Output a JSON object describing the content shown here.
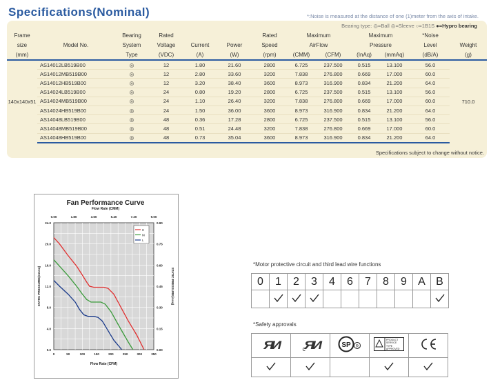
{
  "title": "Specifications(Nominal)",
  "noise_note": "*:Noise is measured at the distance of one (1)meter from the axis of intake.",
  "bearing_legend": {
    "label": "Bearing type:",
    "items": [
      "◎=Ball",
      "◎=Sleeve",
      "○=1B1S",
      "●=Hypro bearing"
    ]
  },
  "table": {
    "headers": [
      [
        "Frame",
        "size",
        "(mm)"
      ],
      [
        "Model No."
      ],
      [
        "Bearing",
        "System",
        "Type"
      ],
      [
        "Rated",
        "Voltage",
        "(VDC)"
      ],
      [
        "Current",
        "(A)"
      ],
      [
        "Power",
        "(W)"
      ],
      [
        "Rated",
        "Speed",
        "(rpm)"
      ],
      [
        "Maximum",
        "AirFlow",
        "(CMM)",
        "(CFM)"
      ],
      [
        "Maximum",
        "Pressure",
        "(InAq)",
        "(mmAq)"
      ],
      [
        "*Noise",
        "Level",
        "(dB/A)"
      ],
      [
        "Weight",
        "(g)"
      ]
    ],
    "frame_size": "140x140x51",
    "weight": "710.0",
    "rows": [
      [
        "AS14012LB519B00",
        "◎",
        "12",
        "1.80",
        "21.60",
        "2800",
        "6.725",
        "237.500",
        "0.515",
        "13.100",
        "56.0"
      ],
      [
        "AS14012MB519B00",
        "◎",
        "12",
        "2.80",
        "33.60",
        "3200",
        "7.838",
        "276.800",
        "0.669",
        "17.000",
        "60.0"
      ],
      [
        "AS14012HB519B00",
        "◎",
        "12",
        "3.20",
        "38.40",
        "3600",
        "8.973",
        "316.900",
        "0.834",
        "21.200",
        "64.0"
      ],
      [
        "AS14024LB519B00",
        "◎",
        "24",
        "0.80",
        "19.20",
        "2800",
        "6.725",
        "237.500",
        "0.515",
        "13.100",
        "56.0"
      ],
      [
        "AS14024MB519B00",
        "◎",
        "24",
        "1.10",
        "26.40",
        "3200",
        "7.838",
        "276.800",
        "0.669",
        "17.000",
        "60.0"
      ],
      [
        "AS14024HB519B00",
        "◎",
        "24",
        "1.50",
        "36.00",
        "3600",
        "8.973",
        "316.900",
        "0.834",
        "21.200",
        "64.0"
      ],
      [
        "AS14048LB519B00",
        "◎",
        "48",
        "0.36",
        "17.28",
        "2800",
        "6.725",
        "237.500",
        "0.515",
        "13.100",
        "56.0"
      ],
      [
        "AS14048MB519B00",
        "◎",
        "48",
        "0.51",
        "24.48",
        "3200",
        "7.838",
        "276.800",
        "0.669",
        "17.000",
        "60.0"
      ],
      [
        "AS14048HB519B00",
        "◎",
        "48",
        "0.73",
        "35.04",
        "3600",
        "8.973",
        "316.900",
        "0.834",
        "21.200",
        "64.0"
      ]
    ]
  },
  "spec_note": "Specifications subject to change without notice.",
  "chart_data": {
    "type": "line",
    "title": "Fan Performance Curve",
    "top_axis_label": "Flow Rate (CMM)",
    "top_ticks": [
      "0.00",
      "1.80",
      "3.60",
      "5.40",
      "7.20",
      "9.00"
    ],
    "xlabel": "Flow Rate (CFM)",
    "xlim": [
      0,
      350
    ],
    "x_ticks": [
      "0",
      "50",
      "100",
      "150",
      "200",
      "250",
      "300",
      "350"
    ],
    "ylabel": "STATIC PRESSURE(mmAq)",
    "ylim": [
      0,
      24
    ],
    "y_ticks": [
      "0.0",
      "4.0",
      "8.0",
      "12.0",
      "16.0",
      "20.0",
      "24.0"
    ],
    "ylabel_right": "STATIC PRESSURE(inAq)",
    "y_ticks_right": [
      "0.00",
      "0.15",
      "0.30",
      "0.45",
      "0.60",
      "0.75",
      "0.90"
    ],
    "grid": true,
    "legend_position": "top-right",
    "series": [
      {
        "name": "H",
        "color": "#e03030",
        "x": [
          0,
          20,
          50,
          80,
          100,
          115,
          125,
          140,
          160,
          175,
          190,
          210,
          230,
          260,
          290,
          316
        ],
        "y": [
          21.2,
          20.0,
          17.8,
          15.8,
          14.1,
          12.8,
          12.0,
          11.8,
          11.8,
          11.8,
          11.6,
          10.5,
          8.5,
          5.5,
          2.8,
          0.0
        ]
      },
      {
        "name": "M",
        "color": "#3a9a3a",
        "x": [
          0,
          20,
          50,
          80,
          100,
          115,
          130,
          150,
          165,
          180,
          200,
          230,
          260,
          277
        ],
        "y": [
          17.0,
          15.8,
          14.0,
          12.0,
          10.5,
          9.5,
          9.0,
          9.0,
          9.0,
          8.6,
          7.2,
          4.3,
          1.5,
          0.0
        ]
      },
      {
        "name": "L",
        "color": "#1a3a8a",
        "x": [
          0,
          20,
          50,
          75,
          90,
          105,
          120,
          140,
          155,
          170,
          190,
          210,
          238
        ],
        "y": [
          13.1,
          12.0,
          10.5,
          9.0,
          7.6,
          6.6,
          6.3,
          6.3,
          6.1,
          5.4,
          3.6,
          1.8,
          0.0
        ]
      }
    ]
  },
  "functions": {
    "heading": "*Motor protective circuit and third lead wire functions",
    "codes": [
      "0",
      "1",
      "2",
      "3",
      "4",
      "6",
      "7",
      "8",
      "9",
      "A",
      "B"
    ],
    "checked": [
      false,
      true,
      true,
      true,
      false,
      false,
      false,
      false,
      false,
      false,
      true
    ]
  },
  "safety": {
    "heading": "*Safety approvals",
    "logos": [
      {
        "icon": "ul-recognized-icon",
        "text": "RU"
      },
      {
        "icon": "cul-recognized-icon",
        "prefix": "c",
        "text": "RU"
      },
      {
        "icon": "csa-icon",
        "text": "SP",
        "reg": "®"
      },
      {
        "icon": "tuv-icon",
        "lines": [
          "PRODUCT",
          "SERVICE",
          "TYPE",
          "APPROVED"
        ]
      },
      {
        "icon": "ce-icon",
        "text": "CE"
      }
    ],
    "checked": [
      true,
      true,
      false,
      true,
      true
    ]
  }
}
